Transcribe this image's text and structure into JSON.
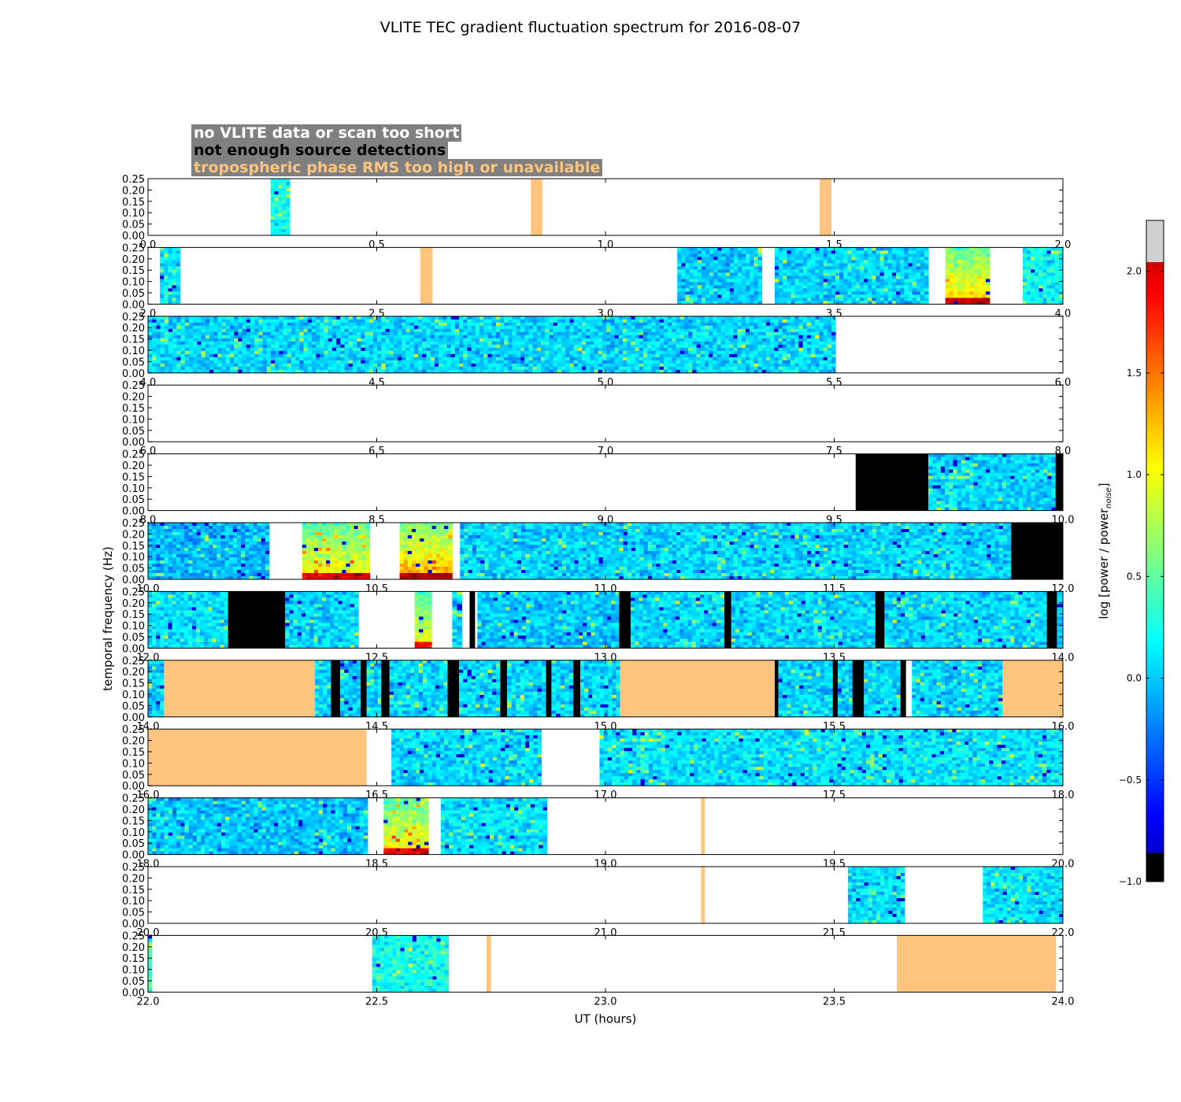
{
  "chart_data": {
    "type": "heatmap",
    "title": "VLITE TEC gradient fluctuation spectrum for 2016-08-07",
    "xlabel": "UT (hours)",
    "ylabel": "temporal frequency (Hz)",
    "colorbar_label": "log [power / power",
    "colorbar_label_sub": "noise",
    "colorbar_label_end": "]",
    "colorbar_range": [
      -1.0,
      2.25
    ],
    "colorbar_ticks": [
      "−1.0",
      "−0.5",
      "0.0",
      "0.5",
      "1.0",
      "1.5",
      "2.0"
    ],
    "colorbar_tick_values": [
      -1.0,
      -0.5,
      0.0,
      0.5,
      1.0,
      1.5,
      2.0
    ],
    "ylim": [
      0,
      0.25
    ],
    "y_ticks": [
      "0.00",
      "0.05",
      "0.10",
      "0.15",
      "0.20",
      "0.25"
    ],
    "legend": [
      {
        "label": "no VLITE data or scan too short",
        "color": "#ffffff"
      },
      {
        "label": "not enough source detections",
        "color": "#000000"
      },
      {
        "label": "tropospheric phase RMS too high or unavailable",
        "color": "#ffc57e"
      }
    ],
    "panels": [
      {
        "xlim": [
          0,
          2
        ],
        "x_ticks": [
          "0.0",
          "0.5",
          "1.0",
          "1.5",
          "2.0"
        ],
        "segments": [
          {
            "start": 0.268,
            "end": 0.31,
            "kind": "data",
            "mean": 0.2
          },
          {
            "start": 0.837,
            "end": 0.862,
            "kind": "tropo"
          },
          {
            "start": 1.468,
            "end": 1.494,
            "kind": "tropo"
          }
        ]
      },
      {
        "xlim": [
          2,
          4
        ],
        "x_ticks": [
          "2.0",
          "2.5",
          "3.0",
          "3.5",
          "4.0"
        ],
        "segments": [
          {
            "start": 2.026,
            "end": 2.07,
            "kind": "data",
            "mean": 0.1
          },
          {
            "start": 2.595,
            "end": 2.622,
            "kind": "tropo"
          },
          {
            "start": 3.157,
            "end": 3.342,
            "kind": "data",
            "mean": 0.0
          },
          {
            "start": 3.37,
            "end": 3.706,
            "kind": "data",
            "mean": 0.05
          },
          {
            "start": 3.743,
            "end": 3.84,
            "kind": "data",
            "mean": 0.85
          },
          {
            "start": 3.912,
            "end": 4.0,
            "kind": "data",
            "mean": 0.2
          }
        ]
      },
      {
        "xlim": [
          4,
          6
        ],
        "x_ticks": [
          "4.0",
          "4.5",
          "5.0",
          "5.5",
          "6.0"
        ],
        "segments": [
          {
            "start": 4.0,
            "end": 5.503,
            "kind": "data",
            "mean": 0.05
          }
        ]
      },
      {
        "xlim": [
          6,
          8
        ],
        "x_ticks": [
          "6.0",
          "6.5",
          "7.0",
          "7.5",
          "8.0"
        ],
        "segments": []
      },
      {
        "xlim": [
          8,
          10
        ],
        "x_ticks": [
          "8.0",
          "8.5",
          "9.0",
          "9.5",
          "10.0"
        ],
        "segments": [
          {
            "start": 9.547,
            "end": 9.706,
            "kind": "detect"
          },
          {
            "start": 9.706,
            "end": 9.984,
            "kind": "data",
            "mean": 0.05
          },
          {
            "start": 9.984,
            "end": 10.0,
            "kind": "detect"
          }
        ]
      },
      {
        "xlim": [
          10,
          12
        ],
        "x_ticks": [
          "10.0",
          "10.5",
          "11.0",
          "11.5",
          "12.0"
        ],
        "segments": [
          {
            "start": 10.0,
            "end": 10.265,
            "kind": "data",
            "mean": -0.05
          },
          {
            "start": 10.337,
            "end": 10.485,
            "kind": "data",
            "mean": 0.75
          },
          {
            "start": 10.55,
            "end": 10.665,
            "kind": "data",
            "mean": 0.95
          },
          {
            "start": 10.682,
            "end": 11.887,
            "kind": "data",
            "mean": 0.05
          },
          {
            "start": 11.887,
            "end": 12.0,
            "kind": "detect"
          }
        ]
      },
      {
        "xlim": [
          12,
          14
        ],
        "x_ticks": [
          "12.0",
          "12.5",
          "13.0",
          "13.5",
          "14.0"
        ],
        "segments": [
          {
            "start": 12.0,
            "end": 12.175,
            "kind": "data",
            "mean": 0.1
          },
          {
            "start": 12.175,
            "end": 12.3,
            "kind": "detect"
          },
          {
            "start": 12.3,
            "end": 12.46,
            "kind": "data",
            "mean": 0.05
          },
          {
            "start": 12.583,
            "end": 12.62,
            "kind": "data",
            "mean": 0.7
          },
          {
            "start": 12.665,
            "end": 12.686,
            "kind": "data",
            "mean": 0.05
          },
          {
            "start": 12.703,
            "end": 12.715,
            "kind": "detect"
          },
          {
            "start": 12.72,
            "end": 13.03,
            "kind": "data",
            "mean": 0.0
          },
          {
            "start": 13.03,
            "end": 13.055,
            "kind": "detect"
          },
          {
            "start": 13.055,
            "end": 13.26,
            "kind": "data",
            "mean": 0.05
          },
          {
            "start": 13.26,
            "end": 13.275,
            "kind": "detect"
          },
          {
            "start": 13.275,
            "end": 13.59,
            "kind": "data",
            "mean": 0.05
          },
          {
            "start": 13.59,
            "end": 13.61,
            "kind": "detect"
          },
          {
            "start": 13.61,
            "end": 13.965,
            "kind": "data",
            "mean": 0.05
          },
          {
            "start": 13.965,
            "end": 13.987,
            "kind": "detect"
          },
          {
            "start": 13.987,
            "end": 14.0,
            "kind": "data",
            "mean": 0.05
          }
        ]
      },
      {
        "xlim": [
          14,
          16
        ],
        "x_ticks": [
          "14.0",
          "14.5",
          "15.0",
          "15.5",
          "16.0"
        ],
        "segments": [
          {
            "start": 14.0,
            "end": 14.035,
            "kind": "data",
            "mean": 0.05
          },
          {
            "start": 14.035,
            "end": 14.365,
            "kind": "tropo"
          },
          {
            "start": 14.365,
            "end": 14.4,
            "kind": "data",
            "mean": 0.05
          },
          {
            "start": 14.4,
            "end": 14.42,
            "kind": "detect"
          },
          {
            "start": 14.42,
            "end": 14.465,
            "kind": "data",
            "mean": 0.0
          },
          {
            "start": 14.465,
            "end": 14.478,
            "kind": "detect"
          },
          {
            "start": 14.478,
            "end": 14.51,
            "kind": "data",
            "mean": 0.05
          },
          {
            "start": 14.51,
            "end": 14.528,
            "kind": "detect"
          },
          {
            "start": 14.528,
            "end": 14.655,
            "kind": "data",
            "mean": 0.05
          },
          {
            "start": 14.655,
            "end": 14.68,
            "kind": "detect"
          },
          {
            "start": 14.68,
            "end": 14.77,
            "kind": "data",
            "mean": 0.05
          },
          {
            "start": 14.77,
            "end": 14.785,
            "kind": "detect"
          },
          {
            "start": 14.785,
            "end": 14.87,
            "kind": "data",
            "mean": 0.05
          },
          {
            "start": 14.87,
            "end": 14.882,
            "kind": "detect"
          },
          {
            "start": 14.882,
            "end": 14.93,
            "kind": "data",
            "mean": 0.05
          },
          {
            "start": 14.93,
            "end": 14.945,
            "kind": "detect"
          },
          {
            "start": 14.945,
            "end": 15.032,
            "kind": "data",
            "mean": 0.05
          },
          {
            "start": 15.032,
            "end": 15.37,
            "kind": "tropo"
          },
          {
            "start": 15.37,
            "end": 15.378,
            "kind": "detect"
          },
          {
            "start": 15.378,
            "end": 15.497,
            "kind": "data",
            "mean": 0.05
          },
          {
            "start": 15.497,
            "end": 15.508,
            "kind": "detect"
          },
          {
            "start": 15.508,
            "end": 15.54,
            "kind": "data",
            "mean": 0.05
          },
          {
            "start": 15.54,
            "end": 15.565,
            "kind": "detect"
          },
          {
            "start": 15.565,
            "end": 15.645,
            "kind": "data",
            "mean": 0.05
          },
          {
            "start": 15.645,
            "end": 15.657,
            "kind": "detect"
          },
          {
            "start": 15.67,
            "end": 15.868,
            "kind": "data",
            "mean": 0.05
          },
          {
            "start": 15.868,
            "end": 16.0,
            "kind": "tropo"
          }
        ]
      },
      {
        "xlim": [
          16,
          18
        ],
        "x_ticks": [
          "16.0",
          "16.5",
          "17.0",
          "17.5",
          "18.0"
        ],
        "segments": [
          {
            "start": 16.0,
            "end": 16.478,
            "kind": "tropo"
          },
          {
            "start": 16.532,
            "end": 16.86,
            "kind": "data",
            "mean": 0.05
          },
          {
            "start": 16.987,
            "end": 18.0,
            "kind": "data",
            "mean": 0.1
          }
        ]
      },
      {
        "xlim": [
          18,
          20
        ],
        "x_ticks": [
          "18.0",
          "18.5",
          "19.0",
          "19.5",
          "20.0"
        ],
        "segments": [
          {
            "start": 18.0,
            "end": 18.48,
            "kind": "data",
            "mean": 0.0
          },
          {
            "start": 18.515,
            "end": 18.613,
            "kind": "data",
            "mean": 0.75
          },
          {
            "start": 18.64,
            "end": 18.872,
            "kind": "data",
            "mean": 0.1
          },
          {
            "start": 19.209,
            "end": 19.217,
            "kind": "tropo"
          }
        ]
      },
      {
        "xlim": [
          20,
          22
        ],
        "x_ticks": [
          "20.0",
          "20.5",
          "21.0",
          "21.5",
          "22.0"
        ],
        "segments": [
          {
            "start": 21.209,
            "end": 21.217,
            "kind": "tropo"
          },
          {
            "start": 21.53,
            "end": 21.654,
            "kind": "data",
            "mean": 0.1
          },
          {
            "start": 21.825,
            "end": 22.0,
            "kind": "data",
            "mean": 0.1
          }
        ]
      },
      {
        "xlim": [
          22,
          24
        ],
        "x_ticks": [
          "22.0",
          "22.5",
          "23.0",
          "23.5",
          "24.0"
        ],
        "segments": [
          {
            "start": 22.0,
            "end": 22.008,
            "kind": "data",
            "mean": 0.4
          },
          {
            "start": 22.49,
            "end": 22.657,
            "kind": "data",
            "mean": 0.25
          },
          {
            "start": 22.74,
            "end": 22.75,
            "kind": "tropo"
          },
          {
            "start": 23.637,
            "end": 23.985,
            "kind": "tropo"
          }
        ]
      }
    ]
  },
  "colors": {
    "no_data": "#ffffff",
    "detect": "#000000",
    "tropo": "#ffc57e",
    "legend_box": "#808080"
  }
}
